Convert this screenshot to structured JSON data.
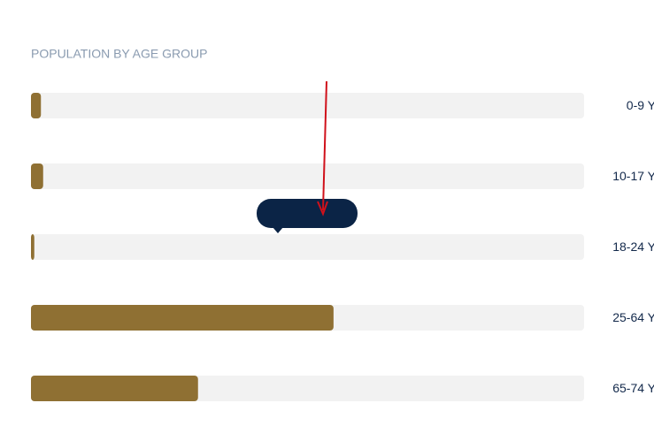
{
  "chart_data": {
    "type": "hbar",
    "title": "POPULATION BY AGE GROUP",
    "categories": [
      "0-9 Y",
      "10-17 Y",
      "18-24 Y",
      "25-64 Y",
      "65-74 Y"
    ],
    "values": [
      1.8,
      2.2,
      0.6,
      54.7,
      30.2
    ],
    "color": "#8f7033",
    "track_color": "#f2f2f2",
    "xlim": [
      0,
      100
    ]
  }
}
